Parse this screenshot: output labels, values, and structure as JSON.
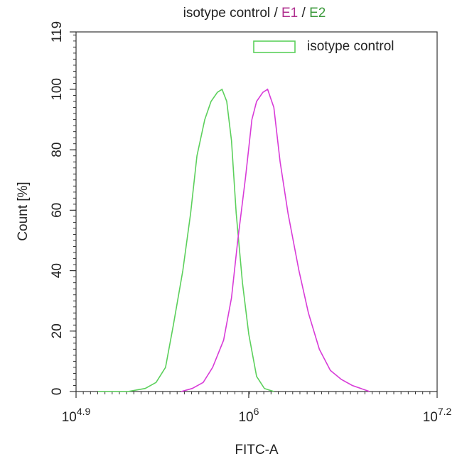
{
  "chart_data": {
    "type": "line",
    "title_parts": [
      {
        "text": "isotype control",
        "color": "#222222"
      },
      {
        "text": "/",
        "color": "#222222"
      },
      {
        "text": "E1",
        "color": "#b0308f"
      },
      {
        "text": "/",
        "color": "#222222"
      },
      {
        "text": "E2",
        "color": "#3c9a3c"
      }
    ],
    "x_label": "FITC-A",
    "y_label": "Count [%]",
    "x_tick_base": "10",
    "xlim": [
      4.9,
      7.2
    ],
    "xticks": [
      4.9,
      6,
      7.2
    ],
    "ylim": [
      0,
      119
    ],
    "yticks": [
      0,
      20,
      40,
      60,
      80,
      100,
      119
    ],
    "legend": "top-right",
    "series": [
      {
        "name": "isotype control",
        "color": "#5cd05c",
        "in_legend": true,
        "x": [
          5.04,
          5.23,
          5.34,
          5.41,
          5.47,
          5.52,
          5.58,
          5.63,
          5.67,
          5.72,
          5.76,
          5.8,
          5.83,
          5.86,
          5.89,
          5.92,
          5.96,
          6.0,
          6.05,
          6.1,
          6.16
        ],
        "values": [
          0,
          0,
          1,
          3,
          8,
          22,
          40,
          59,
          78,
          90,
          96,
          99,
          100,
          96,
          83,
          59,
          36,
          19,
          5,
          1,
          0
        ]
      },
      {
        "name": "E1",
        "color": "#d83cd8",
        "in_legend": false,
        "x": [
          5.57,
          5.64,
          5.71,
          5.77,
          5.84,
          5.89,
          5.93,
          5.98,
          6.02,
          6.05,
          6.09,
          6.12,
          6.16,
          6.2,
          6.25,
          6.32,
          6.38,
          6.45,
          6.52,
          6.59,
          6.66,
          6.77
        ],
        "values": [
          0,
          1,
          3,
          8,
          17,
          31,
          50,
          71,
          90,
          96,
          99,
          100,
          94,
          76,
          59,
          40,
          26,
          14,
          7,
          4,
          2,
          0
        ]
      }
    ]
  }
}
